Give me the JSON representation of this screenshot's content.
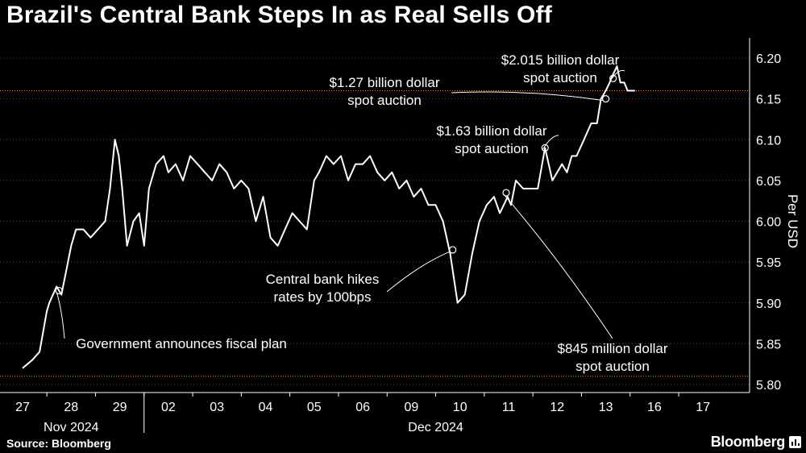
{
  "header": {
    "title": "Brazil's Central Bank Steps In as Real Sells Off"
  },
  "footer": {
    "source": "Source: Bloomberg",
    "brand": "Bloomberg"
  },
  "colors": {
    "background": "#000000",
    "line": "#ffffff",
    "grid": "#4a4a4a",
    "reference": "#e8962e"
  },
  "chart_data": {
    "type": "line",
    "title": "Brazil's Central Bank Steps In as Real Sells Off",
    "ylabel": "Per USD",
    "xlabel": "",
    "ylim": [
      5.8,
      6.2
    ],
    "yticks": [
      5.8,
      5.85,
      5.9,
      5.95,
      6.0,
      6.05,
      6.1,
      6.15,
      6.2
    ],
    "ytick_labels": [
      "5.80",
      "5.85",
      "5.90",
      "5.95",
      "6.00",
      "6.05",
      "6.10",
      "6.15",
      "6.20"
    ],
    "y_axis_side": "right",
    "grid": "horizontal dotted",
    "xticks": [
      "27",
      "28",
      "29",
      "02",
      "03",
      "04",
      "05",
      "06",
      "09",
      "10",
      "11",
      "12",
      "13",
      "16",
      "17"
    ],
    "x_groups": [
      {
        "label": "Nov 2024",
        "days": [
          "27",
          "28",
          "29"
        ]
      },
      {
        "label": "Dec 2024",
        "days": [
          "02",
          "03",
          "04",
          "05",
          "06",
          "09",
          "10",
          "11",
          "12",
          "13",
          "16",
          "17"
        ]
      }
    ],
    "reference_lines": [
      {
        "y": 5.81,
        "color": "#e8962e"
      },
      {
        "y": 6.16,
        "color": "#e8962e"
      }
    ],
    "series": [
      {
        "x": [
          0.0,
          0.2,
          0.35,
          0.5,
          0.55,
          0.7,
          0.8,
          0.9,
          1.0,
          1.1,
          1.25,
          1.4,
          1.55,
          1.7,
          1.8,
          1.9,
          1.98,
          2.05,
          2.15,
          2.28,
          2.4,
          2.5,
          2.6,
          2.75,
          2.9,
          3.0,
          3.15,
          3.3,
          3.45,
          3.6,
          3.75,
          3.9,
          4.05,
          4.2,
          4.35,
          4.5,
          4.65,
          4.8,
          4.95,
          5.1,
          5.25,
          5.4,
          5.55,
          5.7,
          5.85,
          6.0,
          6.1,
          6.25,
          6.4,
          6.55,
          6.7,
          6.85,
          7.0,
          7.15,
          7.3,
          7.45,
          7.6,
          7.75,
          7.9,
          8.05,
          8.2,
          8.35,
          8.5,
          8.65,
          8.8,
          8.95,
          9.1,
          9.25,
          9.4,
          9.55,
          9.7,
          9.82,
          9.9,
          9.98,
          10.05,
          10.15,
          10.3,
          10.45,
          10.6,
          10.75,
          10.9,
          11.0,
          11.1,
          11.2,
          11.3,
          11.4,
          11.55,
          11.7,
          11.82,
          11.9,
          12.0,
          12.08,
          12.15,
          12.23,
          12.3,
          12.38,
          12.45,
          12.52,
          12.6
        ],
        "values": [
          5.82,
          5.83,
          5.84,
          5.89,
          5.9,
          5.92,
          5.91,
          5.94,
          5.97,
          5.99,
          5.99,
          5.98,
          5.99,
          6.0,
          6.04,
          6.1,
          6.08,
          6.04,
          5.97,
          6.0,
          6.01,
          5.97,
          6.04,
          6.07,
          6.08,
          6.06,
          6.07,
          6.05,
          6.08,
          6.07,
          6.06,
          6.05,
          6.07,
          6.06,
          6.04,
          6.05,
          6.04,
          6.0,
          6.03,
          5.98,
          5.97,
          5.99,
          6.01,
          6.0,
          5.99,
          6.05,
          6.06,
          6.08,
          6.07,
          6.08,
          6.05,
          6.07,
          6.07,
          6.08,
          6.06,
          6.05,
          6.06,
          6.04,
          6.05,
          6.03,
          6.04,
          6.02,
          6.02,
          6.0,
          5.96,
          5.9,
          5.91,
          5.96,
          6.0,
          6.02,
          6.03,
          6.01,
          6.02,
          6.03,
          6.02,
          6.05,
          6.04,
          6.04,
          6.04,
          6.09,
          6.05,
          6.06,
          6.07,
          6.06,
          6.08,
          6.08,
          6.1,
          6.12,
          6.12,
          6.15,
          6.16,
          6.17,
          6.18,
          6.19,
          6.17,
          6.17,
          6.16,
          6.16,
          6.16
        ]
      }
    ],
    "annotations": [
      {
        "lines": [
          "$2.015 billion dollar",
          "spot auction"
        ],
        "x": 12.15,
        "y": 6.175
      },
      {
        "lines": [
          "$1.27 billion dollar",
          "spot auction"
        ],
        "x": 12.0,
        "y": 6.15
      },
      {
        "lines": [
          "$1.63 billion dollar",
          "spot auction"
        ],
        "x": 10.75,
        "y": 6.09
      },
      {
        "lines": [
          "Central bank hikes",
          "rates by 100bps"
        ],
        "x": 8.85,
        "y": 5.965
      },
      {
        "lines": [
          "$845 million dollar",
          "spot auction"
        ],
        "x": 9.95,
        "y": 6.035
      },
      {
        "lines": [
          "Government announces fiscal plan"
        ],
        "x": 0.75,
        "y": 5.915
      }
    ]
  }
}
